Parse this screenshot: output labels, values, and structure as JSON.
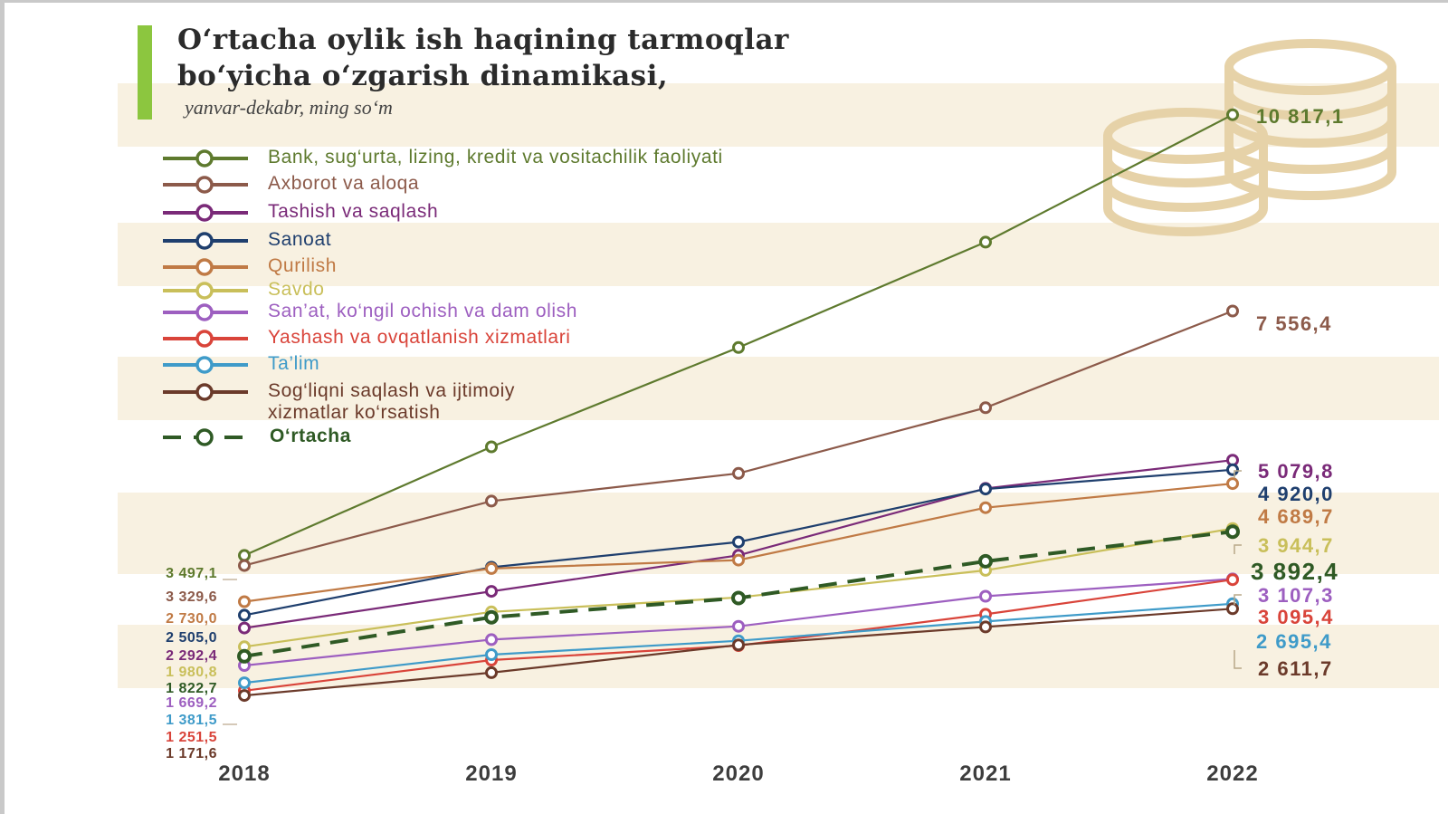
{
  "title_line1": "O‘rtacha oylik ish haqining tarmoqlar",
  "title_line2": "bo‘yicha o‘zgarish dinamikasi,",
  "subtitle": "yanvar-dekabr, ming so‘m",
  "accent_color": "#8cc63f",
  "decoration": "coins-stack-icon",
  "chart_data": {
    "type": "line",
    "x": [
      "2018",
      "2019",
      "2020",
      "2021",
      "2022"
    ],
    "series": [
      {
        "name": "Bank, sug‘urta, lizing, kredit va vositachilik faoliyati",
        "color": "#5e7a2e",
        "dashed": false,
        "values": [
          3497.1,
          5300,
          6950,
          8700,
          10817.1
        ],
        "label_2018": "3 497,1",
        "label_2022": "10 817,1"
      },
      {
        "name": "Axborot va aloqa",
        "color": "#8c5a4a",
        "dashed": false,
        "values": [
          3329.6,
          4400,
          4860,
          5950,
          7556.4
        ],
        "label_2018": "3 329,6",
        "label_2022": "7 556,4"
      },
      {
        "name": "Tashish va saqlash",
        "color": "#7a2a78",
        "dashed": false,
        "values": [
          2292.4,
          2900,
          3500,
          4610,
          5079.8
        ],
        "label_2018": "2 292,4",
        "label_2022": "5 079,8"
      },
      {
        "name": "Sanoat",
        "color": "#1f3f6e",
        "dashed": false,
        "values": [
          2505.0,
          3300,
          3720,
          4600,
          4920.0
        ],
        "label_2018": "2 505,0",
        "label_2022": "4 920,0"
      },
      {
        "name": "Qurilish",
        "color": "#c07a45",
        "dashed": false,
        "values": [
          2730.0,
          3280,
          3420,
          4290,
          4689.7
        ],
        "label_2018": "2 730,0",
        "label_2022": "4 689,7"
      },
      {
        "name": "Savdo",
        "color": "#c9bf5a",
        "dashed": false,
        "values": [
          1980.8,
          2560,
          2800,
          3250,
          3944.7
        ],
        "label_2018": "1 980,8",
        "label_2022": "3 944,7"
      },
      {
        "name": "San’at, ko‘ngil ochish va dam olish",
        "color": "#9d5fc0",
        "dashed": false,
        "values": [
          1669.2,
          2100,
          2320,
          2820,
          3107.3
        ],
        "label_2018": "1 669,2",
        "label_2022": "3 107,3"
      },
      {
        "name": "Yashash va ovqatlanish xizmatlari",
        "color": "#d9443a",
        "dashed": false,
        "values": [
          1251.5,
          1760,
          2000,
          2520,
          3095.4
        ],
        "label_2018": "1 251,5",
        "label_2022": "3 095,4"
      },
      {
        "name": "Ta’lim",
        "color": "#3f9bc9",
        "dashed": false,
        "values": [
          1381.5,
          1850,
          2080,
          2400,
          2695.4
        ],
        "label_2018": "1 381,5",
        "label_2022": "2 695,4"
      },
      {
        "name": "Sog‘liqni saqlash va ijtimoiy xizmatlar ko‘rsatish",
        "color": "#6b3a2a",
        "dashed": false,
        "values": [
          1171.6,
          1550,
          2010,
          2310,
          2611.7
        ],
        "label_2018": "1 171,6",
        "label_2022": "2 611,7"
      },
      {
        "name": "O‘rtacha",
        "color": "#2f5a25",
        "dashed": true,
        "values": [
          1822.7,
          2470,
          2790,
          3400,
          3892.4
        ],
        "label_2018": "1 822,7",
        "label_2022": "3 892,4"
      }
    ],
    "legend_labels": [
      "Bank, sug‘urta, lizing, kredit va vositachilik faoliyati",
      "Axborot va aloqa",
      "Tashish va saqlash",
      "Sanoat",
      "Qurilish",
      "Savdo",
      "San’at, ko‘ngil ochish va dam olish",
      "Yashash va ovqatlanish xizmatlari",
      "Ta’lim",
      "Sog‘liqni saqlash va ijtimoiy",
      "xizmatlar ko‘rsatish",
      "O‘rtacha"
    ],
    "left_labels_order": [
      "3 497,1",
      "3 329,6",
      "2 730,0",
      "2 505,0",
      "2 292,4",
      "1 980,8",
      "1 822,7",
      "1 669,2",
      "1 381,5",
      "1 251,5",
      "1 171,6"
    ],
    "legend_placement": "top-left",
    "grid": false
  }
}
